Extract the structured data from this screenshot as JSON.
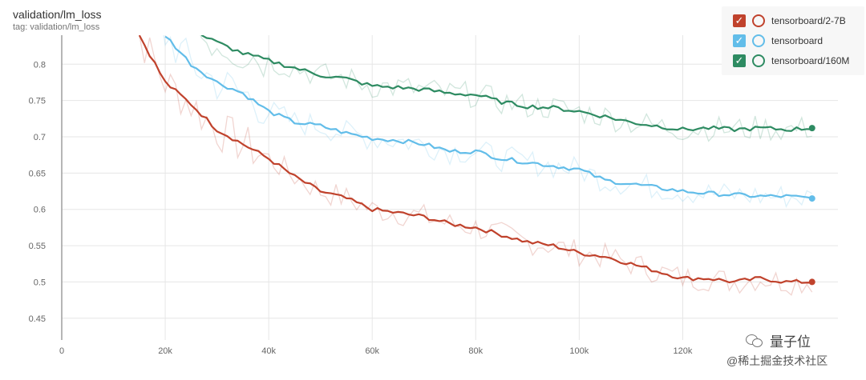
{
  "header": {
    "title": "validation/lm_loss",
    "subtitle": "tag: validation/lm_loss"
  },
  "legend": [
    {
      "label": "tensorboard/2-7B",
      "color": "#c0422c",
      "check": "✓"
    },
    {
      "label": "tensorboard",
      "color": "#62bde9",
      "check": "✓"
    },
    {
      "label": "tensorboard/160M",
      "color": "#2e8b62",
      "check": "✓"
    }
  ],
  "watermark": {
    "line1": "量子位",
    "line2": "@稀土掘金技术社区"
  },
  "chart_data": {
    "type": "line",
    "title": "validation/lm_loss",
    "xlabel": "",
    "ylabel": "",
    "xlim": [
      0,
      150000
    ],
    "ylim": [
      0.42,
      0.84
    ],
    "x_ticks": [
      0,
      20000,
      40000,
      60000,
      80000,
      100000,
      120000
    ],
    "x_tick_labels": [
      "0",
      "20k",
      "40k",
      "60k",
      "80k",
      "100k",
      "120k"
    ],
    "y_ticks": [
      0.45,
      0.5,
      0.55,
      0.6,
      0.65,
      0.7,
      0.75,
      0.8
    ],
    "y_tick_labels": [
      "0.45",
      "0.5",
      "0.55",
      "0.6",
      "0.65",
      "0.7",
      "0.75",
      "0.8"
    ],
    "grid": true,
    "legend_position": "top-right",
    "series": [
      {
        "name": "tensorboard/2-7B",
        "color": "#c0422c",
        "x": [
          15000,
          20000,
          25000,
          30000,
          35000,
          40000,
          45000,
          50000,
          55000,
          60000,
          65000,
          70000,
          75000,
          80000,
          85000,
          90000,
          95000,
          100000,
          105000,
          110000,
          115000,
          120000,
          125000,
          130000,
          135000,
          140000,
          145000
        ],
        "values": [
          0.84,
          0.775,
          0.745,
          0.71,
          0.69,
          0.67,
          0.645,
          0.625,
          0.615,
          0.6,
          0.595,
          0.59,
          0.58,
          0.575,
          0.565,
          0.555,
          0.55,
          0.54,
          0.535,
          0.525,
          0.515,
          0.505,
          0.505,
          0.5,
          0.505,
          0.5,
          0.5
        ]
      },
      {
        "name": "tensorboard",
        "color": "#62bde9",
        "x": [
          20000,
          25000,
          30000,
          35000,
          40000,
          45000,
          50000,
          55000,
          60000,
          65000,
          70000,
          75000,
          80000,
          85000,
          90000,
          95000,
          100000,
          105000,
          110000,
          115000,
          120000,
          125000,
          130000,
          135000,
          140000,
          145000
        ],
        "values": [
          0.84,
          0.8,
          0.775,
          0.76,
          0.735,
          0.72,
          0.715,
          0.705,
          0.698,
          0.695,
          0.69,
          0.68,
          0.68,
          0.67,
          0.665,
          0.66,
          0.655,
          0.64,
          0.635,
          0.63,
          0.625,
          0.622,
          0.62,
          0.618,
          0.618,
          0.615
        ]
      },
      {
        "name": "tensorboard/160M",
        "color": "#2e8b62",
        "x": [
          27000,
          30000,
          35000,
          40000,
          45000,
          50000,
          55000,
          60000,
          65000,
          70000,
          75000,
          80000,
          85000,
          90000,
          95000,
          100000,
          105000,
          110000,
          115000,
          120000,
          125000,
          130000,
          135000,
          140000,
          145000
        ],
        "values": [
          0.84,
          0.83,
          0.815,
          0.805,
          0.795,
          0.785,
          0.78,
          0.77,
          0.768,
          0.765,
          0.76,
          0.758,
          0.748,
          0.742,
          0.74,
          0.735,
          0.728,
          0.72,
          0.715,
          0.71,
          0.712,
          0.71,
          0.712,
          0.71,
          0.712
        ]
      }
    ]
  }
}
